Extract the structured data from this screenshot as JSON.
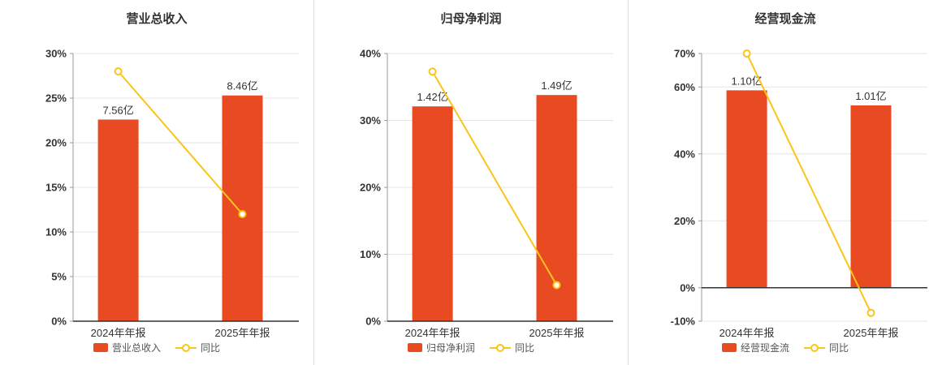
{
  "colors": {
    "bar": "#e84a22",
    "line": "#f9c51a",
    "grid": "#e6e6e6",
    "axis": "#999999",
    "zero_axis": "#333333",
    "text": "#333333",
    "legend_text": "#555555",
    "background": "#ffffff"
  },
  "chart_data": [
    {
      "type": "bar+line",
      "title": "营业总收入",
      "categories": [
        "2024年年报",
        "2025年年报"
      ],
      "bars": {
        "name": "营业总收入",
        "value_labels": [
          "7.56亿",
          "8.46亿"
        ],
        "heights_pct": [
          22.6,
          25.3
        ]
      },
      "line": {
        "name": "同比",
        "values_pct": [
          28.0,
          12.0
        ]
      },
      "ylim": [
        0,
        30
      ],
      "yticks": [
        0,
        5,
        10,
        15,
        20,
        25,
        30
      ],
      "ytick_suffix": "%",
      "grid": true,
      "legend_position": "bottom"
    },
    {
      "type": "bar+line",
      "title": "归母净利润",
      "categories": [
        "2024年年报",
        "2025年年报"
      ],
      "bars": {
        "name": "归母净利润",
        "value_labels": [
          "1.42亿",
          "1.49亿"
        ],
        "heights_pct": [
          32.1,
          33.8
        ]
      },
      "line": {
        "name": "同比",
        "values_pct": [
          37.3,
          5.4
        ]
      },
      "ylim": [
        0,
        40
      ],
      "yticks": [
        0,
        10,
        20,
        30,
        40
      ],
      "ytick_suffix": "%",
      "grid": true,
      "legend_position": "bottom"
    },
    {
      "type": "bar+line",
      "title": "经营现金流",
      "categories": [
        "2024年年报",
        "2025年年报"
      ],
      "bars": {
        "name": "经营现金流",
        "value_labels": [
          "1.10亿",
          "1.01亿"
        ],
        "heights_pct": [
          59.0,
          54.5
        ]
      },
      "line": {
        "name": "同比",
        "values_pct": [
          70.0,
          -7.5
        ]
      },
      "ylim": [
        -10,
        70
      ],
      "yticks": [
        -10,
        0,
        20,
        40,
        60,
        70
      ],
      "ytick_suffix": "%",
      "grid": true,
      "legend_position": "bottom"
    }
  ]
}
